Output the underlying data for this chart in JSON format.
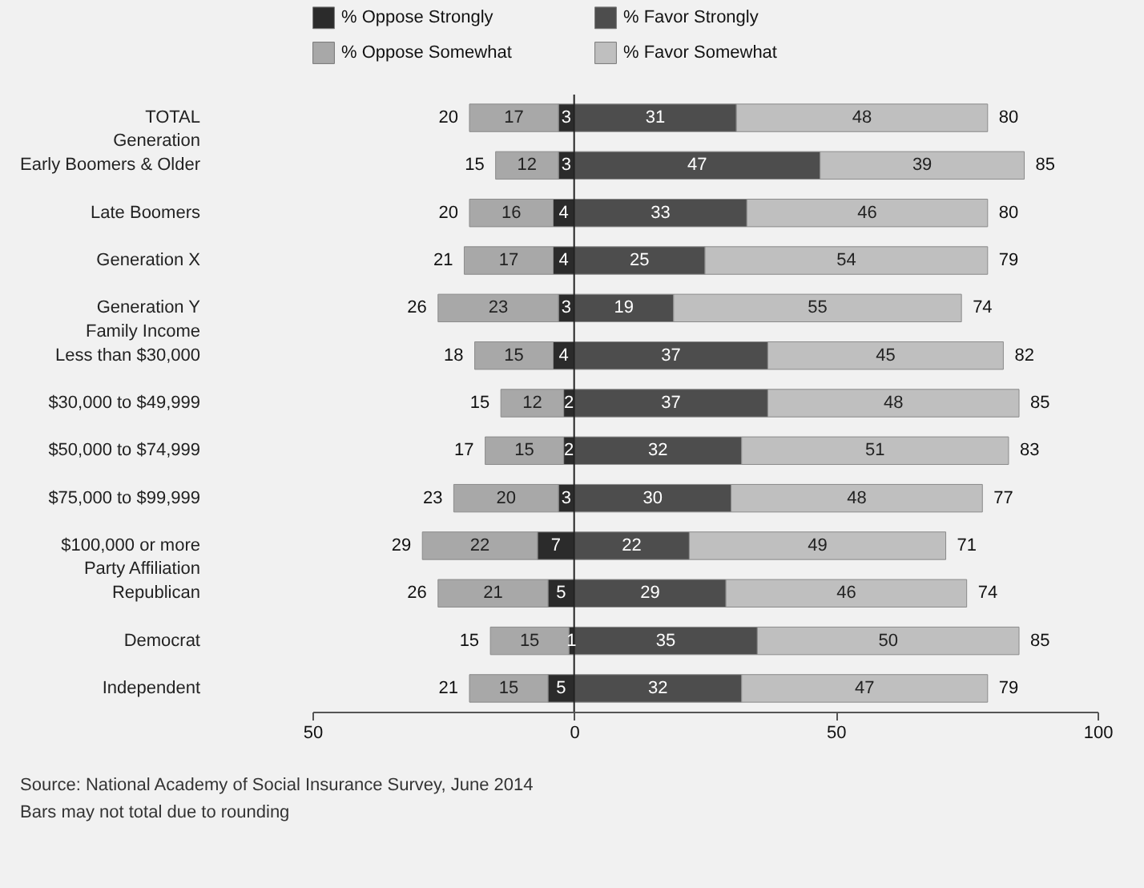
{
  "chart_data": {
    "type": "bar",
    "orientation": "horizontal",
    "categories": [
      "TOTAL",
      "Generation\nEarly Boomers & Older",
      "Late Boomers",
      "Generation X",
      "Generation Y",
      "Family Income\nLess than $30,000",
      "$30,000 to $49,999",
      "$50,000 to $74,999",
      "$75,000 to $99,999",
      "$100,000 or more",
      "Party Affiliation\nRepublican",
      "Democrat",
      "Independent"
    ],
    "series": [
      {
        "name": "% Oppose Strongly",
        "color": "#2b2b2b",
        "values": [
          3,
          3,
          4,
          4,
          3,
          4,
          2,
          2,
          3,
          7,
          5,
          1,
          5
        ],
        "base": [
          -3,
          -3,
          -4,
          -4,
          -3,
          -4,
          -2,
          -2,
          -3,
          -7,
          -5,
          -1,
          -5
        ]
      },
      {
        "name": "% Oppose Somewhat",
        "color": "#a8a8a8",
        "values": [
          17,
          12,
          16,
          17,
          23,
          15,
          12,
          15,
          20,
          22,
          21,
          15,
          15
        ],
        "base": [
          -20,
          -15,
          -20,
          -21,
          -26,
          -19,
          -14,
          -17,
          -23,
          -29,
          -26,
          -16,
          -20
        ]
      },
      {
        "name": "% Favor Strongly",
        "color": "#4d4d4d",
        "values": [
          31,
          47,
          33,
          25,
          19,
          37,
          37,
          32,
          30,
          22,
          29,
          35,
          32
        ],
        "base": [
          0,
          0,
          0,
          0,
          0,
          0,
          0,
          0,
          0,
          0,
          0,
          0,
          0
        ]
      },
      {
        "name": "% Favor Somewhat",
        "color": "#bfbfbf",
        "values": [
          48,
          39,
          46,
          54,
          55,
          45,
          48,
          51,
          48,
          49,
          46,
          50,
          47
        ],
        "base": [
          31,
          47,
          33,
          25,
          19,
          37,
          37,
          32,
          30,
          22,
          29,
          35,
          32
        ]
      }
    ],
    "data_labels": true,
    "totals": [
      [
        "20",
        "80"
      ],
      [
        "15",
        "85"
      ],
      [
        "20",
        "80"
      ],
      [
        "21",
        "79"
      ],
      [
        "26",
        "74"
      ],
      [
        "18",
        "82"
      ],
      [
        "15",
        "85"
      ],
      [
        "17",
        "83"
      ],
      [
        "23",
        "77"
      ],
      [
        "29",
        "71"
      ],
      [
        "26",
        "74"
      ],
      [
        "15",
        "85"
      ],
      [
        "21",
        "79"
      ]
    ],
    "xlim": [
      -50,
      100
    ],
    "xticks": [
      {
        "value": -50,
        "label": "50"
      },
      0,
      50,
      100
    ],
    "ref_lines": [
      {
        "axis": "x",
        "value": 0
      }
    ],
    "grid": false,
    "legend": "top",
    "annotations": [
      "Source: National Academy of Social Insurance Survey, June 2014",
      "Bars may not total due to rounding"
    ]
  }
}
